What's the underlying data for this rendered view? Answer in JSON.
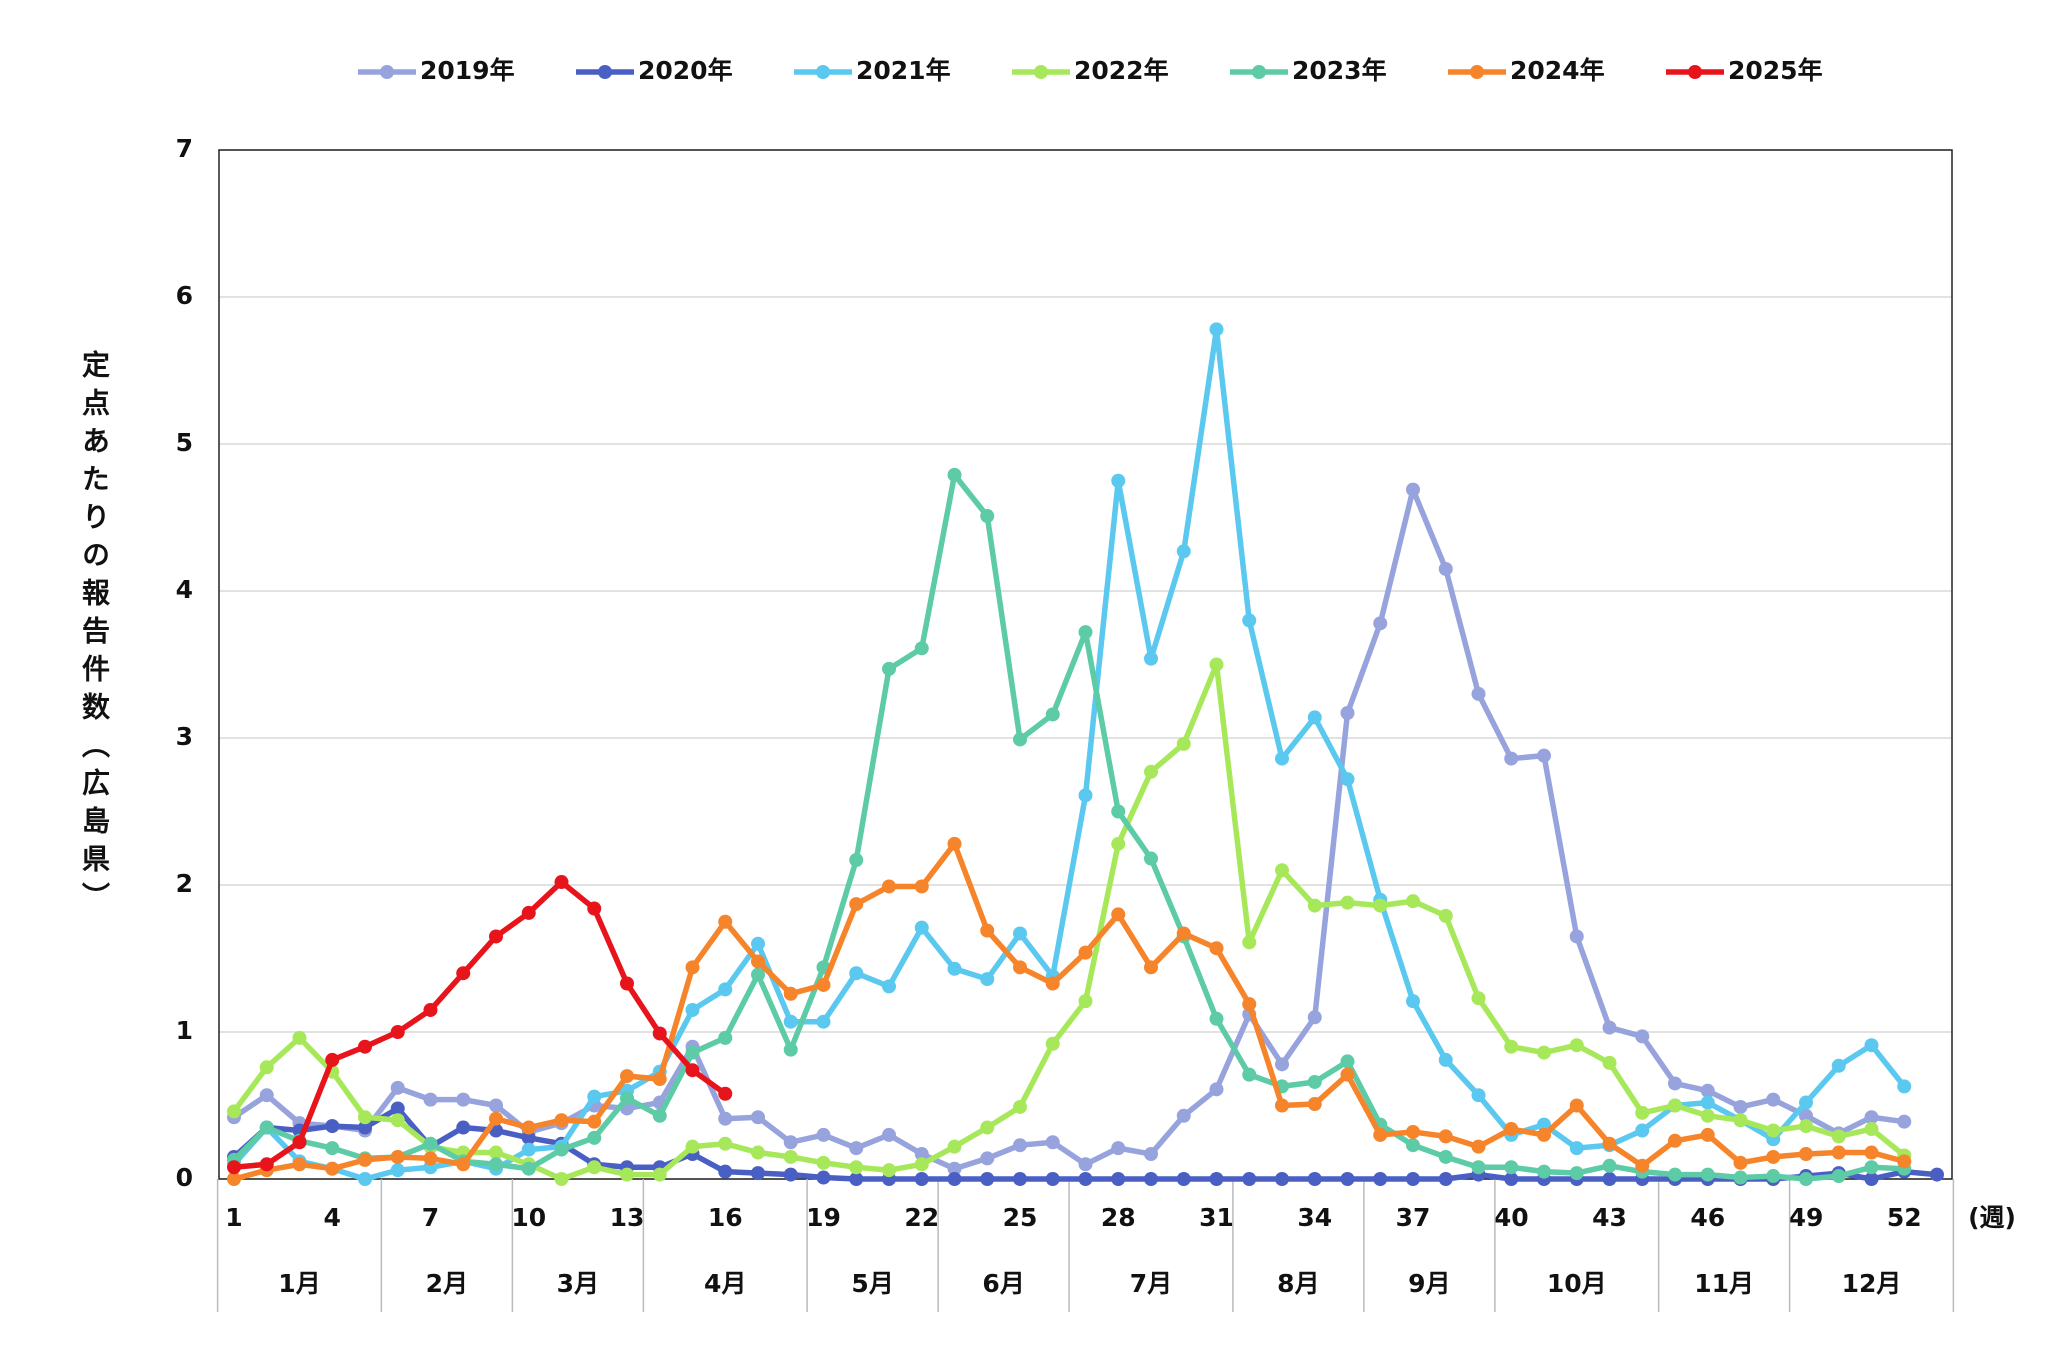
{
  "chart_data": {
    "type": "line",
    "y_label": "定点あたりの報告件数（広島県）",
    "x_unit": "(週)",
    "categories": [
      1,
      null,
      null,
      4,
      null,
      null,
      7,
      null,
      null,
      10,
      null,
      null,
      13,
      null,
      null,
      16,
      null,
      null,
      19,
      null,
      null,
      22,
      null,
      null,
      25,
      null,
      null,
      28,
      null,
      null,
      31,
      null,
      null,
      34,
      null,
      null,
      37,
      null,
      null,
      40,
      null,
      null,
      43,
      null,
      null,
      46,
      null,
      null,
      49,
      null,
      null,
      52,
      null
    ],
    "months": [
      "1月",
      "2月",
      "3月",
      "4月",
      "5月",
      "6月",
      "7月",
      "8月",
      "9月",
      "10月",
      "11月",
      "12月"
    ],
    "ylim": [
      0,
      7
    ],
    "yticks": [
      0,
      1,
      2,
      3,
      4,
      5,
      6,
      7
    ],
    "grid": true,
    "legend": "top",
    "series": [
      {
        "name": "2019年",
        "color": "#97a3dc",
        "values": [
          0.42,
          0.57,
          0.38,
          0.36,
          0.33,
          0.62,
          0.54,
          0.54,
          0.5,
          0.32,
          0.38,
          0.5,
          0.48,
          0.52,
          0.9,
          0.41,
          0.42,
          0.25,
          0.3,
          0.21,
          0.3,
          0.17,
          0.07,
          0.14,
          0.23,
          0.25,
          0.1,
          0.21,
          0.17,
          0.43,
          0.61,
          1.12,
          0.78,
          1.1,
          3.17,
          3.78,
          4.69,
          4.15,
          3.3,
          2.86,
          2.88,
          1.65,
          1.03,
          0.97,
          0.65,
          0.6,
          0.49,
          0.54,
          0.43,
          0.31,
          0.42,
          0.39,
          null
        ]
      },
      {
        "name": "2020年",
        "color": "#4a5fc4",
        "values": [
          0.15,
          0.35,
          0.33,
          0.36,
          0.35,
          0.48,
          0.22,
          0.35,
          0.33,
          0.28,
          0.24,
          0.1,
          0.08,
          0.08,
          0.17,
          0.05,
          0.04,
          0.03,
          0.01,
          0,
          0,
          0,
          0,
          0,
          0,
          0,
          0,
          0,
          0,
          0,
          0,
          0,
          0,
          0,
          0,
          0,
          0,
          0,
          0.03,
          0,
          0,
          0,
          0,
          0,
          0,
          0,
          0,
          0,
          0.02,
          0.04,
          0,
          0.05,
          0.03
        ]
      },
      {
        "name": "2021年",
        "color": "#5bc8ef",
        "values": [
          0.1,
          0.35,
          0.12,
          0.07,
          0,
          0.06,
          0.08,
          0.12,
          0.07,
          0.2,
          0.22,
          0.56,
          0.6,
          0.73,
          1.15,
          1.29,
          1.6,
          1.07,
          1.07,
          1.4,
          1.31,
          1.71,
          1.43,
          1.36,
          1.67,
          1.38,
          2.61,
          4.75,
          3.54,
          4.27,
          5.78,
          3.8,
          2.86,
          3.14,
          2.72,
          1.9,
          1.21,
          0.81,
          0.57,
          0.3,
          0.37,
          0.21,
          0.23,
          0.33,
          0.5,
          0.52,
          0.4,
          0.27,
          0.52,
          0.77,
          0.91,
          0.63,
          null
        ]
      },
      {
        "name": "2022年",
        "color": "#a7e85a",
        "values": [
          0.46,
          0.76,
          0.96,
          0.73,
          0.42,
          0.4,
          0.22,
          0.18,
          0.18,
          0.1,
          0,
          0.08,
          0.03,
          0.03,
          0.22,
          0.24,
          0.18,
          0.15,
          0.11,
          0.08,
          0.06,
          0.1,
          0.22,
          0.35,
          0.49,
          0.92,
          1.21,
          2.28,
          2.77,
          2.96,
          3.5,
          1.61,
          2.1,
          1.86,
          1.88,
          1.86,
          1.89,
          1.79,
          1.23,
          0.9,
          0.86,
          0.91,
          0.79,
          0.45,
          0.5,
          0.43,
          0.4,
          0.33,
          0.36,
          0.29,
          0.34,
          0.16,
          null
        ]
      },
      {
        "name": "2023年",
        "color": "#5ccba6",
        "values": [
          0.13,
          0.35,
          0.26,
          0.21,
          0.14,
          0.15,
          0.24,
          0.12,
          0.1,
          0.07,
          0.2,
          0.28,
          0.55,
          0.43,
          0.86,
          0.96,
          1.39,
          0.88,
          1.44,
          2.17,
          3.47,
          3.61,
          4.79,
          4.51,
          2.99,
          3.16,
          3.72,
          2.5,
          2.18,
          1.65,
          1.09,
          0.71,
          0.63,
          0.66,
          0.8,
          0.37,
          0.23,
          0.15,
          0.08,
          0.08,
          0.05,
          0.04,
          0.09,
          0.05,
          0.03,
          0.03,
          0.01,
          0.02,
          0,
          0.02,
          0.08,
          0.07,
          null
        ]
      },
      {
        "name": "2024年",
        "color": "#f5842a",
        "values": [
          0,
          0.06,
          0.1,
          0.07,
          0.13,
          0.15,
          0.14,
          0.1,
          0.41,
          0.35,
          0.4,
          0.39,
          0.7,
          0.68,
          1.44,
          1.75,
          1.48,
          1.26,
          1.32,
          1.87,
          1.99,
          1.99,
          2.28,
          1.69,
          1.44,
          1.33,
          1.54,
          1.8,
          1.44,
          1.67,
          1.57,
          1.19,
          0.5,
          0.51,
          0.71,
          0.3,
          0.32,
          0.29,
          0.22,
          0.34,
          0.3,
          0.5,
          0.24,
          0.09,
          0.26,
          0.3,
          0.11,
          0.15,
          0.17,
          0.18,
          0.18,
          0.12,
          null
        ]
      },
      {
        "name": "2025年",
        "color": "#e8141c",
        "values": [
          0.08,
          0.1,
          0.25,
          0.81,
          0.9,
          1.0,
          1.15,
          1.4,
          1.65,
          1.81,
          2.02,
          1.84,
          1.33,
          0.99,
          0.74,
          0.58,
          null,
          null,
          null,
          null,
          null,
          null,
          null,
          null,
          null,
          null,
          null,
          null,
          null,
          null,
          null,
          null,
          null,
          null,
          null,
          null,
          null,
          null,
          null,
          null,
          null,
          null,
          null,
          null,
          null,
          null,
          null,
          null,
          null,
          null,
          null,
          null,
          null
        ]
      }
    ]
  }
}
